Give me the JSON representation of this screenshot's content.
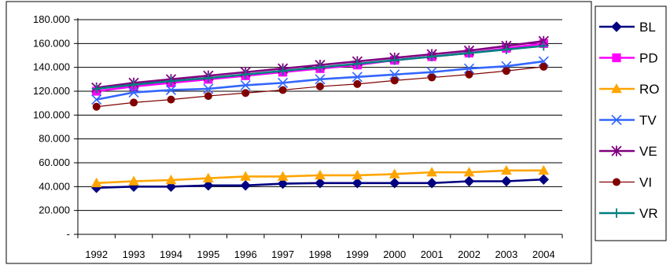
{
  "chart_data": {
    "type": "line",
    "title": "",
    "xlabel": "",
    "ylabel": "",
    "categories": [
      "1992",
      "1993",
      "1994",
      "1995",
      "1996",
      "1997",
      "1998",
      "1999",
      "2000",
      "2001",
      "2002",
      "2003",
      "2004"
    ],
    "ylim": [
      0,
      180000
    ],
    "ytick_values": [
      0,
      20000,
      40000,
      60000,
      80000,
      100000,
      120000,
      140000,
      160000,
      180000
    ],
    "ytick_labels": [
      "-",
      "20.000",
      "40.000",
      "60.000",
      "80.000",
      "100.000",
      "120.000",
      "140.000",
      "160.000",
      "180.000"
    ],
    "grid": "horizontal",
    "legend_position": "right",
    "series": [
      {
        "name": "BL",
        "color": "#000080",
        "marker": "diamond",
        "values": [
          39000,
          40000,
          40000,
          41000,
          41000,
          42500,
          43000,
          43000,
          43000,
          43000,
          44500,
          44500,
          46000
        ]
      },
      {
        "name": "PD",
        "color": "#FF00FF",
        "marker": "square",
        "values": [
          120000,
          124000,
          127000,
          130000,
          133000,
          136000,
          139000,
          142000,
          146000,
          149000,
          152000,
          156000,
          160000
        ]
      },
      {
        "name": "RO",
        "color": "#FFA500",
        "marker": "triangle",
        "values": [
          43000,
          44500,
          45500,
          47000,
          48500,
          48500,
          49500,
          49500,
          50500,
          52000,
          52000,
          53500,
          53500
        ]
      },
      {
        "name": "TV",
        "color": "#3366FF",
        "marker": "x",
        "values": [
          113000,
          119000,
          121000,
          122000,
          125000,
          127000,
          130000,
          132000,
          134000,
          136000,
          139000,
          141000,
          145000
        ]
      },
      {
        "name": "VE",
        "color": "#800080",
        "marker": "star",
        "values": [
          123000,
          127000,
          130000,
          133000,
          136000,
          139000,
          142000,
          145000,
          148000,
          151000,
          154000,
          158000,
          162000
        ]
      },
      {
        "name": "VI",
        "color": "#800000",
        "marker": "circle",
        "values": [
          107000,
          110500,
          113000,
          116000,
          118500,
          121000,
          124000,
          126000,
          129000,
          131500,
          134000,
          137000,
          140500
        ]
      },
      {
        "name": "VR",
        "color": "#008080",
        "marker": "plus",
        "values": [
          122000,
          125500,
          128500,
          131000,
          134000,
          137000,
          140000,
          143000,
          146000,
          149000,
          152000,
          155000,
          158000
        ]
      }
    ]
  }
}
